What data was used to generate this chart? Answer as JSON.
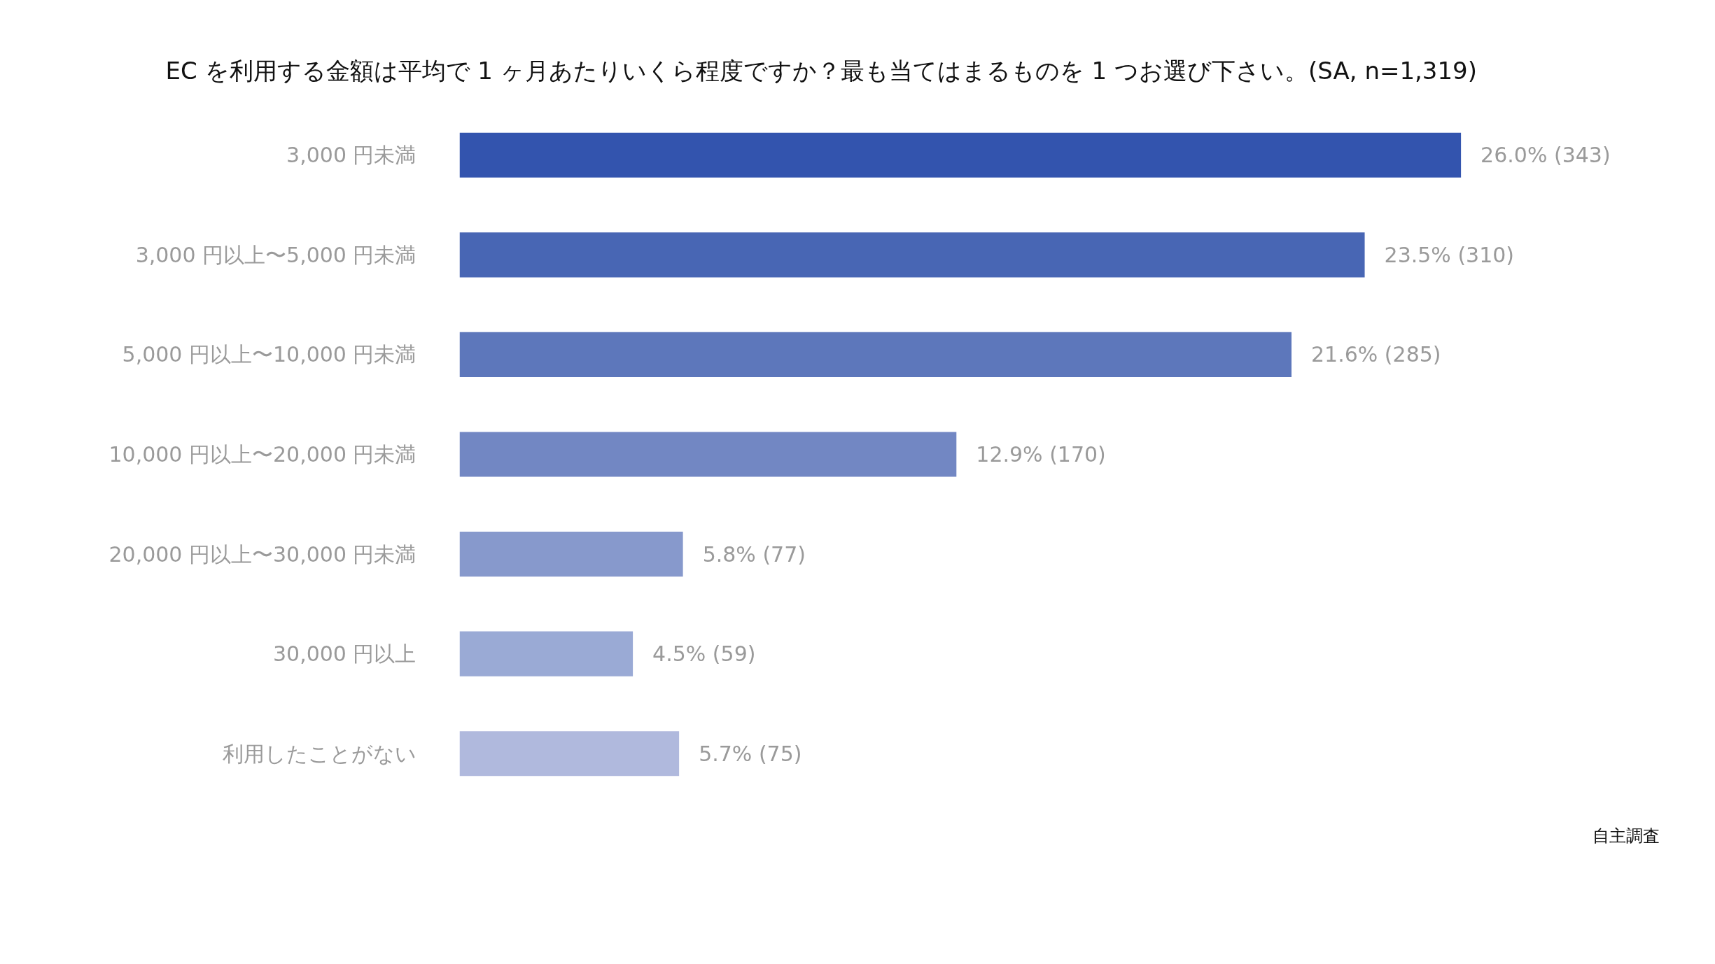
{
  "chart_data": {
    "type": "bar",
    "orientation": "horizontal",
    "title": "EC を利用する金額は平均で 1 ヶ月あたりいくら程度ですか？最も当てはまるものを 1 つお選び下さい。(SA, n=1,319)",
    "categories": [
      "3,000 円未満",
      "3,000 円以上〜5,000 円未満",
      "5,000 円以上〜10,000 円未満",
      "10,000 円以上〜20,000 円未満",
      "20,000 円以上〜30,000 円未満",
      "30,000 円以上",
      "利用したことがない"
    ],
    "values": [
      26.0,
      23.5,
      21.6,
      12.9,
      5.8,
      4.5,
      5.7
    ],
    "value_labels": [
      "26.0% (343)",
      "23.5% (310)",
      "21.6% (285)",
      "12.9% (170)",
      "5.8% (77)",
      "4.5% (59)",
      "5.7% (75)"
    ],
    "colors": [
      "#3354ae",
      "#4866b4",
      "#5d77bb",
      "#7287c3",
      "#8799cc",
      "#9aaad5",
      "#b0b9dd"
    ],
    "grid": false,
    "annotations": [
      "自主調査"
    ]
  }
}
